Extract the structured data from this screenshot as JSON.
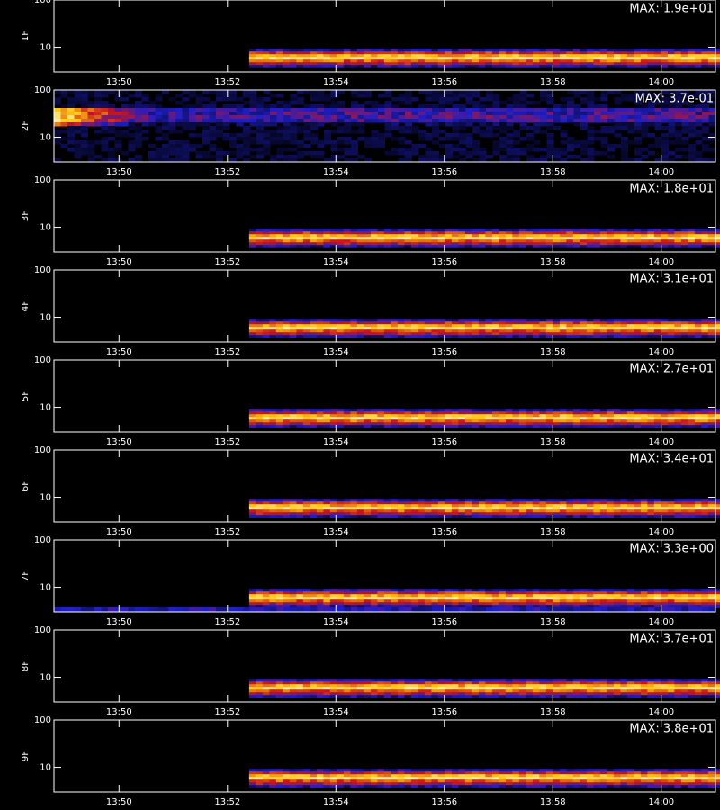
{
  "chart_data": {
    "type": "spectrogram",
    "xlim": [
      48.8,
      61.0
    ],
    "xticks": [
      {
        "value": 50,
        "label": "13:50"
      },
      {
        "value": 52,
        "label": "13:52"
      },
      {
        "value": 54,
        "label": "13:54"
      },
      {
        "value": 56,
        "label": "13:56"
      },
      {
        "value": 58,
        "label": "13:58"
      },
      {
        "value": 60,
        "label": "14:00"
      }
    ],
    "ylim": [
      3,
      100
    ],
    "log_y": true,
    "yticks": [
      10,
      100
    ],
    "panels": [
      {
        "label": "1F",
        "max": "MAX: 1.9e+01"
      },
      {
        "label": "2F",
        "max": "MAX: 3.7e-01"
      },
      {
        "label": "3F",
        "max": "MAX: 1.8e+01"
      },
      {
        "label": "4F",
        "max": "MAX: 3.1e+01"
      },
      {
        "label": "5F",
        "max": "MAX: 2.7e+01"
      },
      {
        "label": "6F",
        "max": "MAX: 3.4e+01"
      },
      {
        "label": "7F",
        "max": "MAX: 3.3e+00"
      },
      {
        "label": "8F",
        "max": "MAX: 3.7e+01"
      },
      {
        "label": "9F",
        "max": "MAX: 3.8e+01"
      }
    ]
  }
}
